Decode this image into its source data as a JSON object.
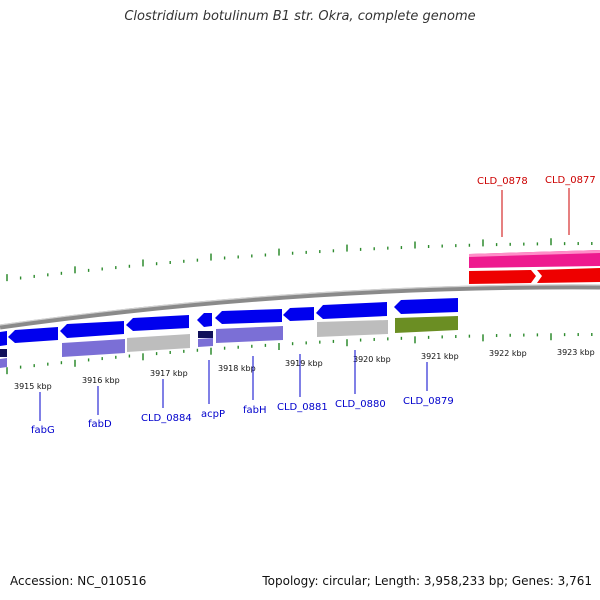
{
  "title": "Clostridium botulinum B1 str. Okra, complete genome",
  "footer": {
    "accession": "Accession: NC_010516",
    "summary": "Topology: circular; Length: 3,958,233 bp; Genes: 3,761"
  },
  "colors": {
    "backbone": "#8a8a8a",
    "tick": "#2e8b2e",
    "label_top": "#cc0000",
    "label_bottom": "#0000cc",
    "cds_forward": "#0000ee",
    "cds_reverse": "#0000ee",
    "rna_reverse": "#7b6fd6",
    "gray_feature": "#bdbdbd",
    "olive_feature": "#6b8e23",
    "magenta_feature": "#ee1a8f",
    "red_feature": "#ee0000"
  },
  "scale": {
    "ticks": [
      {
        "label": "3915 kbp"
      },
      {
        "label": "3916 kbp"
      },
      {
        "label": "3917 kbp"
      },
      {
        "label": "3918 kbp"
      },
      {
        "label": "3919 kbp"
      },
      {
        "label": "3920 kbp"
      },
      {
        "label": "3921 kbp"
      },
      {
        "label": "3922 kbp"
      },
      {
        "label": "3923 kbp"
      }
    ]
  },
  "genes_top": [
    {
      "label": "CLD_0878"
    },
    {
      "label": "CLD_0877"
    }
  ],
  "genes_bottom": [
    {
      "label": "fabG"
    },
    {
      "label": "fabD"
    },
    {
      "label": "CLD_0884"
    },
    {
      "label": "acpP"
    },
    {
      "label": "fabH"
    },
    {
      "label": "CLD_0881"
    },
    {
      "label": "CLD_0880"
    },
    {
      "label": "CLD_0879"
    }
  ]
}
